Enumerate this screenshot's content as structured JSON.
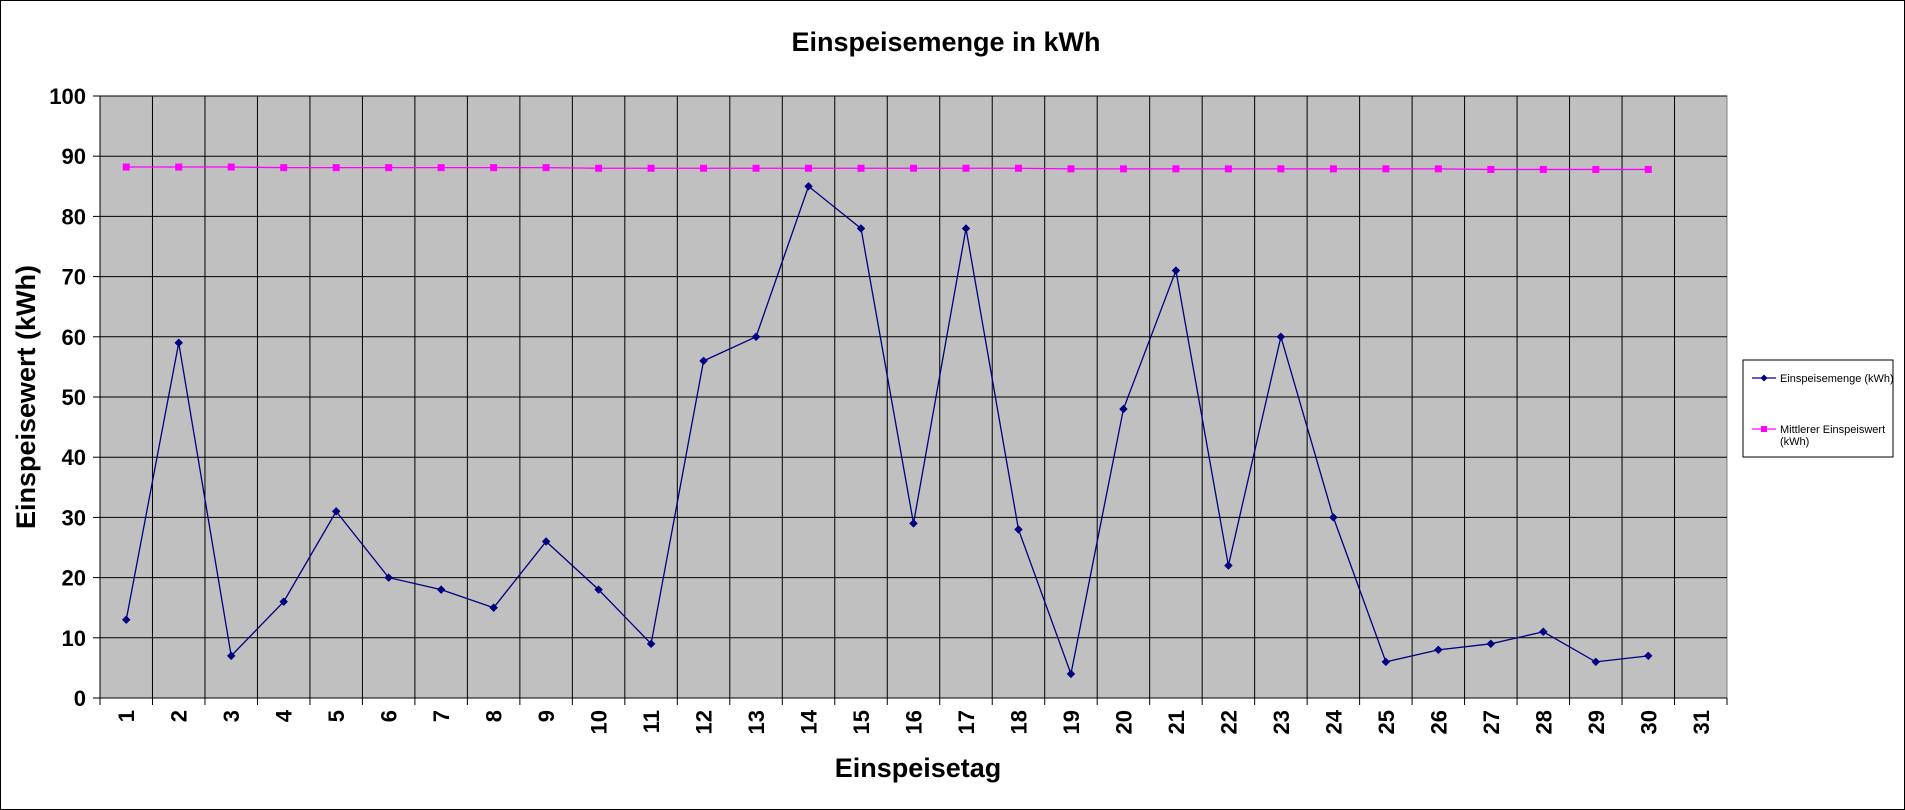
{
  "chart_data": {
    "type": "line",
    "title": "Einspeisemenge in kWh",
    "xlabel": "Einspeisetag",
    "ylabel": "Einspeisewert  (kWh)",
    "categories": [
      "1",
      "2",
      "3",
      "4",
      "5",
      "6",
      "7",
      "8",
      "9",
      "10",
      "11",
      "12",
      "13",
      "14",
      "15",
      "16",
      "17",
      "18",
      "19",
      "20",
      "21",
      "22",
      "23",
      "24",
      "25",
      "26",
      "27",
      "28",
      "29",
      "30",
      "31"
    ],
    "ylim": [
      0,
      100
    ],
    "yticks": [
      0,
      10,
      20,
      30,
      40,
      50,
      60,
      70,
      80,
      90,
      100
    ],
    "grid": true,
    "legend_position": "right",
    "plot_background": "#C0C0C0",
    "series": [
      {
        "name": "Einspeisemenge (kWh)",
        "color": "#000080",
        "marker": "diamond",
        "values": [
          13,
          59,
          7,
          16,
          31,
          20,
          18,
          15,
          26,
          18,
          9,
          56,
          60,
          85,
          78,
          29,
          78,
          28,
          4,
          48,
          71,
          22,
          60,
          30,
          6,
          8,
          9,
          11,
          6,
          7,
          null
        ]
      },
      {
        "name": "Mittlerer Einspeiswert (kWh)",
        "color": "#FF00FF",
        "marker": "square",
        "values": [
          88.2,
          88.2,
          88.2,
          88.1,
          88.1,
          88.1,
          88.1,
          88.1,
          88.1,
          88.0,
          88.0,
          88.0,
          88.0,
          88.0,
          88.0,
          88.0,
          88.0,
          88.0,
          87.9,
          87.9,
          87.9,
          87.9,
          87.9,
          87.9,
          87.9,
          87.9,
          87.8,
          87.8,
          87.8,
          87.8,
          null
        ]
      }
    ],
    "legend_lines": [
      [
        "Einspeisemenge (kWh)"
      ],
      [
        "Mittlerer Einspeiswert",
        "(kWh)"
      ]
    ]
  }
}
